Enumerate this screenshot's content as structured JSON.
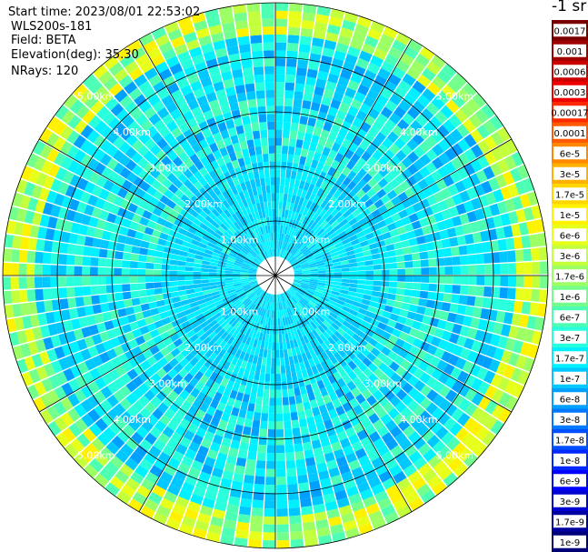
{
  "header": {
    "start_time": "Start time: 2023/08/01 22:53:02",
    "instrument": "WLS200s-181",
    "field": "Field: BETA",
    "elevation": "Elevation(deg): 35.30",
    "nrays": "NRays: 120"
  },
  "colorbar": {
    "unit_label": "-1 sr",
    "ticks": [
      "0.0017",
      "0.001",
      "0.0006",
      "0.0003",
      "0.00017",
      "0.0001",
      "6e-5",
      "3e-5",
      "1.7e-5",
      "1e-5",
      "6e-6",
      "3e-6",
      "1.7e-6",
      "1e-6",
      "6e-7",
      "3e-7",
      "1.7e-7",
      "1e-7",
      "6e-8",
      "3e-8",
      "1.7e-8",
      "1e-8",
      "6e-9",
      "3e-9",
      "1.7e-9",
      "1e-9"
    ],
    "colors": [
      "#7a0000",
      "#a00000",
      "#c80000",
      "#ee0000",
      "#ff2a00",
      "#ff5a00",
      "#ff8800",
      "#ffb000",
      "#ffd600",
      "#fff200",
      "#e8ff1a",
      "#c4ff3c",
      "#9cff64",
      "#74ff8c",
      "#4cffb4",
      "#28ffdc",
      "#00f0ff",
      "#00c8ff",
      "#00a0ff",
      "#0078ff",
      "#0050ff",
      "#0028ff",
      "#0000ff",
      "#0000d0",
      "#0000a0",
      "#000078"
    ]
  },
  "chart_data": {
    "type": "heatmap",
    "projection": "polar PPI",
    "field": "BETA",
    "n_rays": 120,
    "elevation_deg": 35.3,
    "range_rings_km": [
      1.0,
      2.0,
      3.0,
      4.0,
      5.0
    ],
    "range_labels": [
      "1.00km",
      "2.00km",
      "3.00km",
      "4.00km",
      "5.00km"
    ],
    "max_range_km": 5.0,
    "azimuth_lines_deg": [
      0,
      30,
      60,
      90,
      120,
      150,
      180,
      210,
      240,
      270,
      300,
      330
    ],
    "typical_value_near": "1.7e-7",
    "enhanced_band": {
      "range_km": [
        4.4,
        4.9
      ],
      "values_up_to": "1e-5"
    },
    "colorbar_scale": "log"
  }
}
